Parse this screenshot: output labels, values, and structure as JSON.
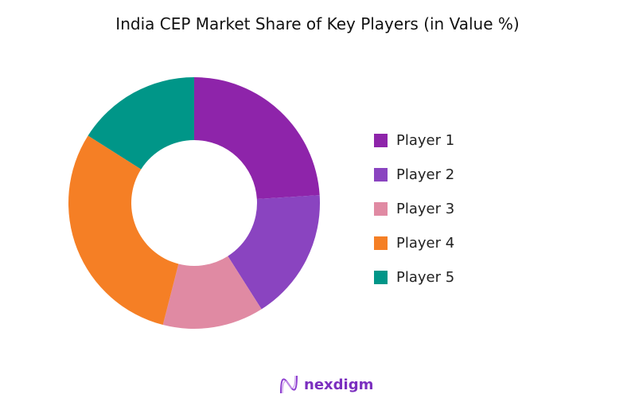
{
  "chart_data": {
    "type": "pie",
    "donut": true,
    "title": "India CEP Market Share of Key Players (in Value %)",
    "categories": [
      "Player 1",
      "Player 2",
      "Player 3",
      "Player 4",
      "Player 5"
    ],
    "values": [
      24,
      17,
      13,
      30,
      16
    ],
    "colors": [
      "#8e24aa",
      "#8a44c0",
      "#e08aa3",
      "#f57f25",
      "#009688"
    ],
    "legend_position": "right"
  },
  "logo": {
    "text": "nexdigm"
  }
}
